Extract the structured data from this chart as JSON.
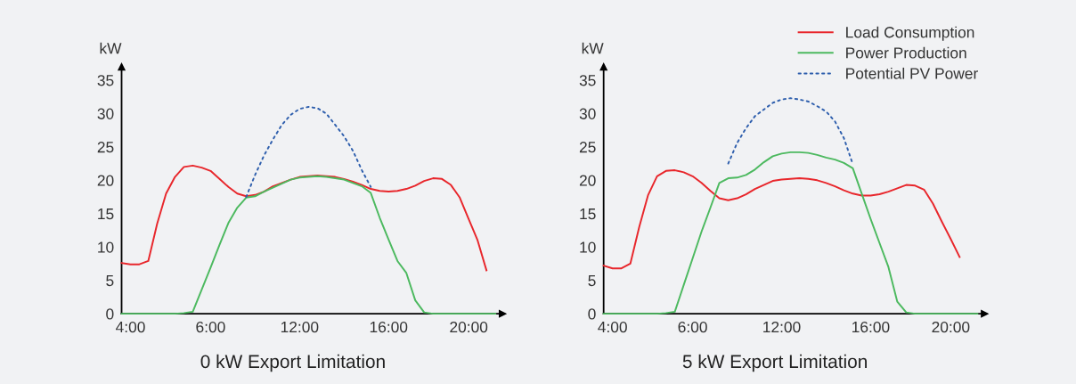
{
  "chart_data": [
    {
      "type": "line",
      "title": "0 kW Export Limitation",
      "ylabel": "kW",
      "ylim": [
        0,
        37
      ],
      "categories": [
        null,
        "4:00",
        null,
        null,
        null,
        null,
        null,
        null,
        null,
        null,
        "6:00",
        null,
        null,
        null,
        null,
        null,
        null,
        null,
        null,
        null,
        "12:00",
        null,
        null,
        null,
        null,
        null,
        null,
        null,
        null,
        null,
        "16:00",
        null,
        null,
        null,
        null,
        null,
        null,
        null,
        null,
        "20:00",
        null,
        null,
        null
      ],
      "yticks": [
        0,
        5,
        10,
        15,
        20,
        25,
        30,
        35
      ],
      "grid": false,
      "legend": false,
      "series": [
        {
          "color": "#e8262b",
          "line_style": "solid",
          "values": [
            7.6,
            7.4,
            7.4,
            7.9,
            13.5,
            18,
            20.5,
            22,
            22.2,
            21.9,
            21.4,
            20.2,
            19,
            18,
            17.6,
            17.8,
            18.3,
            19.1,
            19.6,
            20.1,
            20.5,
            20.6,
            20.7,
            20.6,
            20.5,
            20.2,
            19.8,
            19.3,
            18.7,
            18.4,
            18.3,
            18.4,
            18.7,
            19.2,
            19.9,
            20.3,
            20.2,
            19.3,
            17.4,
            14.2,
            11,
            6.5,
            null
          ]
        },
        {
          "color": "#4cb95f",
          "line_style": "solid",
          "values": [
            0,
            0,
            0,
            0,
            0,
            0,
            0,
            0.1,
            0.3,
            3.6,
            6.9,
            10.3,
            13.6,
            15.9,
            17.4,
            17.6,
            18.3,
            18.9,
            19.5,
            20.1,
            20.4,
            20.5,
            20.6,
            20.5,
            20.3,
            20.1,
            19.6,
            19.1,
            18.1,
            14.4,
            11.1,
            7.9,
            6.1,
            2,
            0.2,
            0,
            0,
            0,
            0,
            0,
            0,
            0,
            0
          ]
        },
        {
          "color": "#2f5fad",
          "line_style": "dotted",
          "values": [
            null,
            null,
            null,
            null,
            null,
            null,
            null,
            null,
            null,
            null,
            null,
            null,
            null,
            null,
            17.5,
            20.8,
            23.7,
            26.1,
            28.3,
            29.8,
            30.7,
            31,
            30.8,
            30,
            28.3,
            26.6,
            24.4,
            21.5,
            19,
            null,
            null,
            null,
            null,
            null,
            null,
            null,
            null,
            null,
            null,
            null,
            null,
            null,
            null
          ]
        }
      ]
    },
    {
      "type": "line",
      "title": "5 kW Export Limitation",
      "ylabel": "kW",
      "ylim": [
        0,
        37
      ],
      "categories": [
        null,
        "4:00",
        null,
        null,
        null,
        null,
        null,
        null,
        null,
        null,
        "6:00",
        null,
        null,
        null,
        null,
        null,
        null,
        null,
        null,
        null,
        "12:00",
        null,
        null,
        null,
        null,
        null,
        null,
        null,
        null,
        null,
        "16:00",
        null,
        null,
        null,
        null,
        null,
        null,
        null,
        null,
        "20:00",
        null,
        null,
        null
      ],
      "yticks": [
        0,
        5,
        10,
        15,
        20,
        25,
        30,
        35
      ],
      "grid": false,
      "legend": "top right",
      "series": [
        {
          "name": "Load Consumption",
          "color": "#e8262b",
          "line_style": "solid",
          "values": [
            7.2,
            6.8,
            6.8,
            7.5,
            13,
            17.8,
            20.6,
            21.4,
            21.5,
            21.2,
            20.6,
            19.6,
            18.4,
            17.3,
            17,
            17.3,
            17.9,
            18.7,
            19.3,
            19.9,
            20.1,
            20.2,
            20.3,
            20.2,
            20,
            19.6,
            19.1,
            18.5,
            18,
            17.7,
            17.7,
            17.9,
            18.3,
            18.8,
            19.3,
            19.2,
            18.6,
            16.5,
            13.8,
            11.2,
            8.5,
            null,
            null
          ]
        },
        {
          "name": "Power Production",
          "color": "#4cb95f",
          "line_style": "solid",
          "values": [
            0,
            0,
            0,
            0,
            0,
            0,
            0,
            0.1,
            0.3,
            4.3,
            8.3,
            12.3,
            15.9,
            19.6,
            20.3,
            20.4,
            20.8,
            21.6,
            22.7,
            23.6,
            24,
            24.2,
            24.2,
            24.1,
            23.8,
            23.4,
            23.1,
            22.6,
            21.8,
            18,
            14.2,
            10.6,
            7,
            1.8,
            0.2,
            0,
            0,
            0,
            0,
            0,
            0,
            0,
            0
          ]
        },
        {
          "name": "Potential PV Power",
          "color": "#2f5fad",
          "line_style": "dotted",
          "values": [
            null,
            null,
            null,
            null,
            null,
            null,
            null,
            null,
            null,
            null,
            null,
            null,
            null,
            null,
            22.5,
            25.6,
            27.8,
            29.6,
            30.6,
            31.6,
            32.1,
            32.3,
            32.1,
            31.8,
            31.1,
            30.3,
            28.8,
            26.3,
            22.4,
            null,
            null,
            null,
            null,
            null,
            null,
            null,
            null,
            null,
            null,
            null,
            null,
            null,
            null
          ]
        }
      ]
    }
  ]
}
